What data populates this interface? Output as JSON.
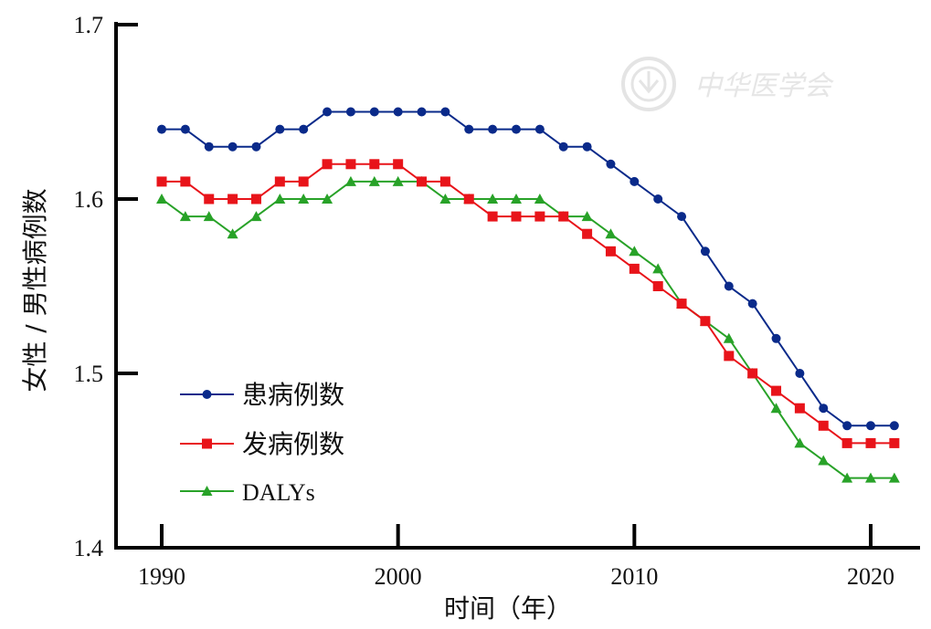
{
  "chart_data": {
    "type": "line",
    "title": "",
    "xlabel": "时间（年）",
    "ylabel": "女性 / 男性病例数",
    "xlim": [
      1988,
      2022
    ],
    "ylim": [
      1.4,
      1.7
    ],
    "x_ticks": [
      1990,
      2000,
      2010,
      2020
    ],
    "y_ticks": [
      1.4,
      1.5,
      1.6,
      1.7
    ],
    "grid": false,
    "legend_position": "bottom-left",
    "x": [
      1990,
      1991,
      1992,
      1993,
      1994,
      1995,
      1996,
      1997,
      1998,
      1999,
      2000,
      2001,
      2002,
      2003,
      2004,
      2005,
      2006,
      2007,
      2008,
      2009,
      2010,
      2011,
      2012,
      2013,
      2014,
      2015,
      2016,
      2017,
      2018,
      2019,
      2020,
      2021
    ],
    "series": [
      {
        "name": "患病例数",
        "color": "#0a2a8a",
        "marker": "circle",
        "values": [
          1.64,
          1.64,
          1.63,
          1.63,
          1.63,
          1.64,
          1.64,
          1.65,
          1.65,
          1.65,
          1.65,
          1.65,
          1.65,
          1.64,
          1.64,
          1.64,
          1.64,
          1.63,
          1.63,
          1.62,
          1.61,
          1.6,
          1.59,
          1.57,
          1.55,
          1.54,
          1.52,
          1.5,
          1.48,
          1.47,
          1.47,
          1.47
        ]
      },
      {
        "name": "发病例数",
        "color": "#e8141a",
        "marker": "square",
        "values": [
          1.61,
          1.61,
          1.6,
          1.6,
          1.6,
          1.61,
          1.61,
          1.62,
          1.62,
          1.62,
          1.62,
          1.61,
          1.61,
          1.6,
          1.59,
          1.59,
          1.59,
          1.59,
          1.58,
          1.57,
          1.56,
          1.55,
          1.54,
          1.53,
          1.51,
          1.5,
          1.49,
          1.48,
          1.47,
          1.46,
          1.46,
          1.46
        ]
      },
      {
        "name": "DALYs",
        "color": "#28a228",
        "marker": "triangle",
        "values": [
          1.6,
          1.59,
          1.59,
          1.58,
          1.59,
          1.6,
          1.6,
          1.6,
          1.61,
          1.61,
          1.61,
          1.61,
          1.6,
          1.6,
          1.6,
          1.6,
          1.6,
          1.59,
          1.59,
          1.58,
          1.57,
          1.56,
          1.54,
          1.53,
          1.52,
          1.5,
          1.48,
          1.46,
          1.45,
          1.44,
          1.44,
          1.44
        ]
      }
    ]
  },
  "watermark": {
    "text": "中华医学会",
    "icon": "seal-icon"
  }
}
